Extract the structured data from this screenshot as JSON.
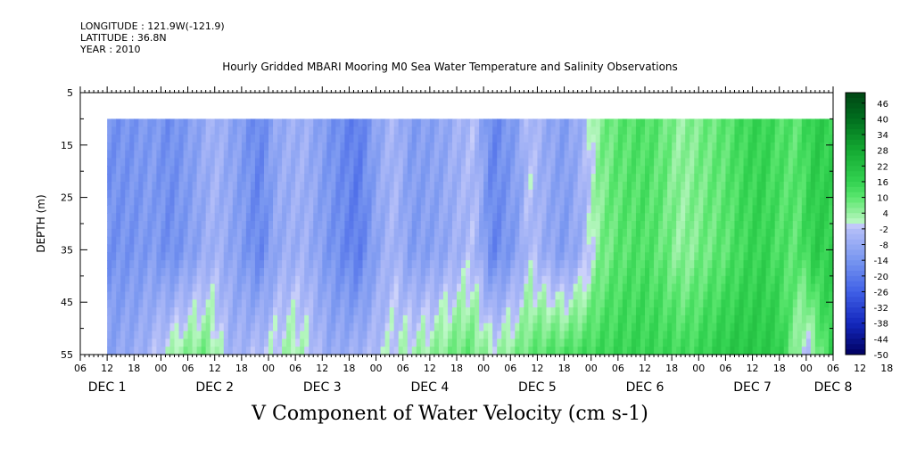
{
  "header": {
    "longitude": "LONGITUDE : 121.9W(-121.9)",
    "latitude": "LATITUDE : 36.8N",
    "year": "YEAR : 2010"
  },
  "chart_data": {
    "type": "heatmap",
    "title": "Hourly Gridded MBARI Mooring M0 Sea Water Temperature and Salinity Observations",
    "xlabel": "V Component of Water Velocity (cm s-1)",
    "ylabel": "DEPTH (m)",
    "y_ticks": [
      5,
      15,
      25,
      35,
      45,
      55
    ],
    "ylim": [
      55,
      5
    ],
    "data_depth_range": [
      10,
      55
    ],
    "x_range_hours": [
      0,
      168
    ],
    "data_start_hour": 6,
    "x_hour_labels": [
      "06",
      "12",
      "18",
      "00",
      "06",
      "12",
      "18",
      "00",
      "06",
      "12",
      "18",
      "00",
      "06",
      "12",
      "18",
      "00",
      "06",
      "12",
      "18",
      "00",
      "06",
      "12",
      "18",
      "00",
      "06",
      "12",
      "18",
      "00",
      "06",
      "12",
      "18",
      "00",
      "06"
    ],
    "x_day_labels": [
      {
        "hour": 12,
        "label": "DEC  1"
      },
      {
        "hour": 36,
        "label": "DEC  2"
      },
      {
        "hour": 60,
        "label": "DEC  3"
      },
      {
        "hour": 84,
        "label": "DEC  4"
      },
      {
        "hour": 108,
        "label": "DEC  5"
      },
      {
        "hour": 132,
        "label": "DEC  6"
      },
      {
        "hour": 156,
        "label": "DEC  7"
      },
      {
        "hour": 174,
        "label": "DEC  8"
      }
    ],
    "colorbar": {
      "labels": [
        "46",
        "40",
        "34",
        "28",
        "22",
        "16",
        "10",
        "4",
        "-2",
        "-8",
        "-14",
        "-20",
        "-26",
        "-32",
        "-38",
        "-44",
        "-50"
      ],
      "min": -50,
      "max": 50
    },
    "field_profile": [
      {
        "hour": 6,
        "v": -15
      },
      {
        "hour": 12,
        "v": -14
      },
      {
        "hour": 16,
        "v": -12
      },
      {
        "hour": 20,
        "v": -16
      },
      {
        "hour": 26,
        "v": -10
      },
      {
        "hour": 30,
        "v": -5
      },
      {
        "hour": 36,
        "v": -12
      },
      {
        "hour": 40,
        "v": -18
      },
      {
        "hour": 44,
        "v": -8
      },
      {
        "hour": 50,
        "v": -6
      },
      {
        "hour": 56,
        "v": -14
      },
      {
        "hour": 62,
        "v": -20
      },
      {
        "hour": 66,
        "v": -10
      },
      {
        "hour": 70,
        "v": -4
      },
      {
        "hour": 74,
        "v": -12
      },
      {
        "hour": 80,
        "v": -10
      },
      {
        "hour": 84,
        "v": -6
      },
      {
        "hour": 88,
        "v": -3
      },
      {
        "hour": 92,
        "v": -18
      },
      {
        "hour": 98,
        "v": -10
      },
      {
        "hour": 100,
        "v": -2
      },
      {
        "hour": 104,
        "v": -8
      },
      {
        "hour": 108,
        "v": -12
      },
      {
        "hour": 112,
        "v": -6
      },
      {
        "hour": 116,
        "v": 6
      },
      {
        "hour": 120,
        "v": 10
      },
      {
        "hour": 126,
        "v": 12
      },
      {
        "hour": 130,
        "v": 9
      },
      {
        "hour": 134,
        "v": 4
      },
      {
        "hour": 140,
        "v": 8
      },
      {
        "hour": 144,
        "v": 10
      },
      {
        "hour": 148,
        "v": 14
      },
      {
        "hour": 152,
        "v": 16
      },
      {
        "hour": 156,
        "v": 12
      },
      {
        "hour": 160,
        "v": 10
      },
      {
        "hour": 164,
        "v": 18
      },
      {
        "hour": 168,
        "v": 16
      }
    ],
    "bottom_profile": [
      {
        "hour": 6,
        "v": -10
      },
      {
        "hour": 14,
        "v": -6
      },
      {
        "hour": 22,
        "v": 5
      },
      {
        "hour": 28,
        "v": 8
      },
      {
        "hour": 34,
        "v": -6
      },
      {
        "hour": 48,
        "v": 4
      },
      {
        "hour": 56,
        "v": -8
      },
      {
        "hour": 64,
        "v": -4
      },
      {
        "hour": 72,
        "v": 2
      },
      {
        "hour": 80,
        "v": 6
      },
      {
        "hour": 86,
        "v": 10
      },
      {
        "hour": 92,
        "v": 3
      },
      {
        "hour": 98,
        "v": 8
      },
      {
        "hour": 104,
        "v": 12
      },
      {
        "hour": 112,
        "v": 14
      },
      {
        "hour": 124,
        "v": 16
      },
      {
        "hour": 136,
        "v": 14
      },
      {
        "hour": 146,
        "v": 20
      },
      {
        "hour": 156,
        "v": 18
      },
      {
        "hour": 162,
        "v": -4
      },
      {
        "hour": 168,
        "v": 18
      }
    ]
  }
}
